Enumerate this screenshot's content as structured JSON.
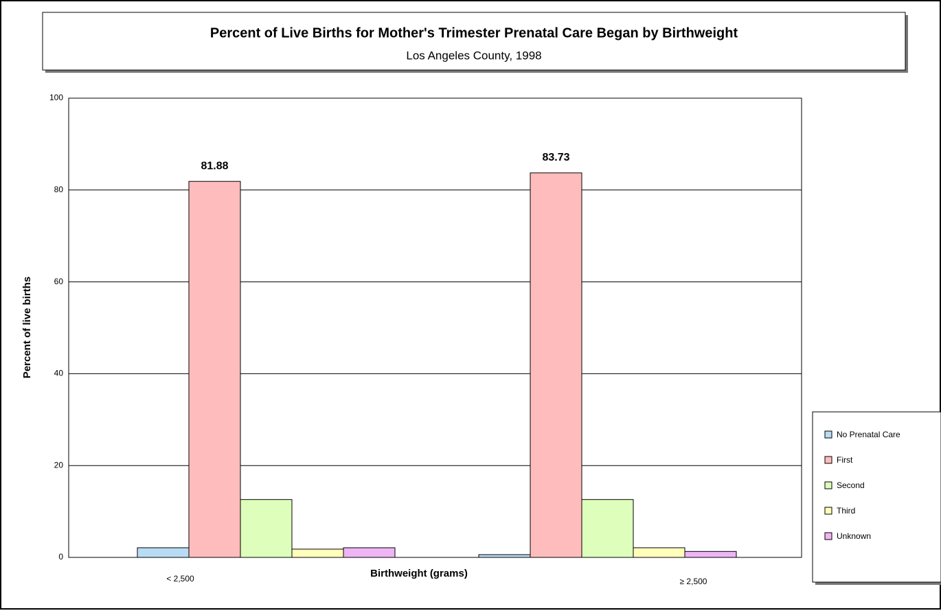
{
  "chart_data": {
    "type": "bar",
    "title": "Percent of Live Births for Mother's Trimester Prenatal Care Began by Birthweight",
    "subtitle": "Los Angeles County, 1998",
    "x_label": "Birthweight (grams)",
    "y_label": "Percent of live births",
    "categories": [
      "< 2,500",
      "≥ 2,500"
    ],
    "series": [
      {
        "name": "No Prenatal Care",
        "color": "#b9dcf5",
        "values": [
          2.1,
          0.6
        ]
      },
      {
        "name": "First",
        "color": "#ffbcbc",
        "values": [
          81.88,
          83.73
        ],
        "data_labels": true
      },
      {
        "name": "Second",
        "color": "#ddffbb",
        "values": [
          12.6,
          12.6
        ]
      },
      {
        "name": "Third",
        "color": "#ffffbb",
        "values": [
          1.8,
          2.1
        ]
      },
      {
        "name": "Unknown",
        "color": "#eeb5f5",
        "values": [
          2.1,
          1.3
        ]
      }
    ],
    "ylim": [
      0,
      100
    ],
    "yticks": [
      0,
      20,
      40,
      60,
      80,
      100
    ],
    "grid": true,
    "legend": "right"
  }
}
